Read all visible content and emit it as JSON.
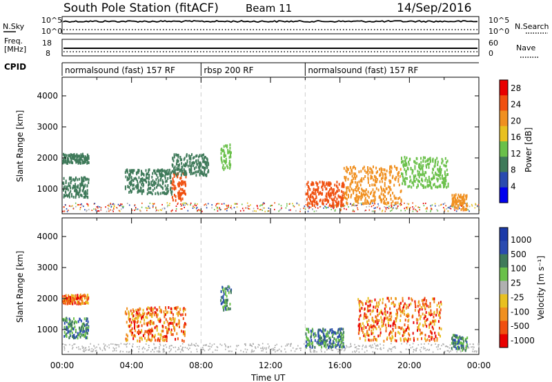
{
  "header": {
    "title": "South Pole Station (fitACF)",
    "beam": "Beam 11",
    "date": "14/Sep/2016"
  },
  "nsky_panel": {
    "left_label": "N.Sky",
    "left_ticks": [
      "10^5",
      "10^0"
    ],
    "right_label": "N.Search",
    "right_ticks": [
      "10^5",
      "10^0"
    ]
  },
  "freq_panel": {
    "left_label_1": "Freq.",
    "left_label_2": "[MHz]",
    "left_ticks": [
      "18",
      "8"
    ],
    "right_label": "Nave",
    "right_ticks": [
      "60",
      "0"
    ]
  },
  "cpid": {
    "label": "CPID",
    "segments": [
      {
        "label": "normalsound (fast) 157 RF",
        "start_hour": 0,
        "end_hour": 8
      },
      {
        "label": "rbsp 200 RF",
        "start_hour": 8,
        "end_hour": 14
      },
      {
        "label": "normalsound (fast) 157 RF",
        "start_hour": 14,
        "end_hour": 24
      }
    ]
  },
  "colors": {
    "power": [
      "#0000ee",
      "#2a4bb0",
      "#3f7a5a",
      "#6ac04a",
      "#e8c020",
      "#f09020",
      "#f05010",
      "#e80000"
    ],
    "velocity": [
      "#e80000",
      "#f05010",
      "#f09020",
      "#e8c020",
      "#b0b0b0",
      "#6ac04a",
      "#3f7a5a",
      "#2a4bb0",
      "#1c3aa8"
    ],
    "ground_scatter": "#b0b0b0"
  },
  "chart_data": [
    {
      "type": "heatmap",
      "name_hint": "power",
      "xlabel": "",
      "ylabel": "Slant Range [km]",
      "ylim": [
        200,
        4600
      ],
      "xlim_hours": [
        0,
        24
      ],
      "y_ticks": [
        "1000",
        "2000",
        "3000",
        "4000"
      ],
      "colorbar": {
        "label": "Power [dB]",
        "ticks": [
          "4",
          "8",
          "12",
          "16",
          "20",
          "24",
          "28"
        ],
        "range": [
          0,
          30
        ]
      },
      "scatter_regions": [
        {
          "t0": 0.0,
          "t1": 1.5,
          "r0": 700,
          "r1": 1350,
          "value": 9
        },
        {
          "t0": 0.0,
          "t1": 1.5,
          "r0": 1800,
          "r1": 2100,
          "value": 8
        },
        {
          "t0": 3.6,
          "t1": 6.3,
          "r0": 800,
          "r1": 1600,
          "value": 10
        },
        {
          "t0": 6.3,
          "t1": 7.1,
          "r0": 600,
          "r1": 1500,
          "value": 26
        },
        {
          "t0": 6.3,
          "t1": 8.4,
          "r0": 1400,
          "r1": 2100,
          "value": 11
        },
        {
          "t0": 9.1,
          "t1": 9.7,
          "r0": 1600,
          "r1": 2400,
          "value": 12
        },
        {
          "t0": 14.0,
          "t1": 16.2,
          "r0": 400,
          "r1": 1200,
          "value": 24
        },
        {
          "t0": 16.2,
          "t1": 19.5,
          "r0": 500,
          "r1": 1700,
          "value": 22
        },
        {
          "t0": 19.5,
          "t1": 22.2,
          "r0": 1000,
          "r1": 2000,
          "value": 14
        },
        {
          "t0": 22.4,
          "t1": 23.3,
          "r0": 300,
          "r1": 800,
          "value": 20
        }
      ]
    },
    {
      "type": "heatmap",
      "name_hint": "velocity",
      "xlabel": "Time UT",
      "ylabel": "Slant Range [km]",
      "ylim": [
        200,
        4600
      ],
      "xlim_hours": [
        0,
        24
      ],
      "y_ticks": [
        "1000",
        "2000",
        "3000",
        "4000"
      ],
      "x_ticks": [
        "00:00",
        "04:00",
        "08:00",
        "12:00",
        "16:00",
        "20:00",
        "00:00"
      ],
      "colorbar": {
        "label": "Velocity [m s⁻¹]",
        "ticks": [
          "1000",
          "500",
          "100",
          "25",
          "-25",
          "-100",
          "-500",
          "-1000"
        ]
      },
      "scatter_regions": [
        {
          "t0": 0.0,
          "t1": 1.5,
          "r0": 700,
          "r1": 1350,
          "value": "positive"
        },
        {
          "t0": 0.0,
          "t1": 1.5,
          "r0": 1800,
          "r1": 2100,
          "value": "negative"
        },
        {
          "t0": 3.6,
          "t1": 7.1,
          "r0": 600,
          "r1": 1700,
          "value": "negative"
        },
        {
          "t0": 9.1,
          "t1": 9.7,
          "r0": 1600,
          "r1": 2400,
          "value": "positive"
        },
        {
          "t0": 14.0,
          "t1": 16.2,
          "r0": 400,
          "r1": 1000,
          "value": "positive"
        },
        {
          "t0": 17.0,
          "t1": 21.8,
          "r0": 600,
          "r1": 2000,
          "value": "negative"
        },
        {
          "t0": 22.4,
          "t1": 23.3,
          "r0": 300,
          "r1": 800,
          "value": "positive"
        }
      ]
    }
  ]
}
